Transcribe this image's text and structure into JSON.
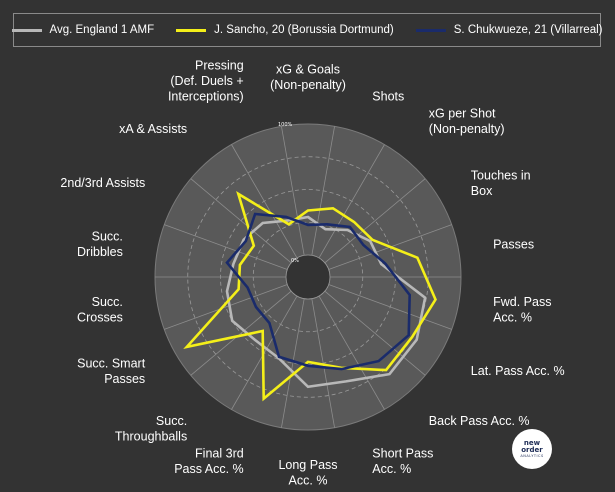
{
  "chart_data": {
    "type": "radar",
    "range": [
      0,
      100
    ],
    "ring_labels": [
      "0%",
      "100%"
    ],
    "rings": 4,
    "categories": [
      "xG & Goals\n(Non-penalty)",
      "Shots",
      "xG per Shot\n(Non-penalty)",
      "Touches in\nBox",
      "Passes",
      "Fwd. Pass\nAcc. %",
      "Lat. Pass Acc. %",
      "Back Pass Acc. %",
      "Short Pass\nAcc. %",
      "Long Pass\nAcc. %",
      "Final 3rd\nPass Acc. %",
      "Succ.\nThroughballs",
      "Succ. Smart\nPasses",
      "Succ.\nCrosses",
      "Succ.\nDribbles",
      "2nd/3rd Assists",
      "xA & Assists",
      "Pressing\n(Def. Duels +\nInterceptions)"
    ],
    "series": [
      {
        "name": "Avg. England 1 AMF",
        "color": "#b8b8b8",
        "values": [
          29,
          22,
          30,
          38,
          40,
          74,
          79,
          80,
          68,
          67,
          49,
          46,
          50,
          46,
          41,
          40,
          37,
          29
        ]
      },
      {
        "name": "J. Sancho, 20 (Borussia Dortmund)",
        "color": "#f4ef19",
        "values": [
          34,
          39,
          38,
          40,
          68,
          82,
          75,
          76,
          57,
          48,
          82,
          37,
          90,
          37,
          36,
          31,
          66,
          26
        ]
      },
      {
        "name": "S. Chukwueze, 21 (Villarreal)",
        "color": "#1a2b6b",
        "values": [
          23,
          26,
          33,
          32,
          43,
          62,
          72,
          67,
          58,
          51,
          48,
          29,
          29,
          30,
          46,
          38,
          46,
          32
        ]
      }
    ]
  },
  "logo": {
    "line1": "new",
    "line2": "order",
    "line3": "ANALYTICS"
  }
}
